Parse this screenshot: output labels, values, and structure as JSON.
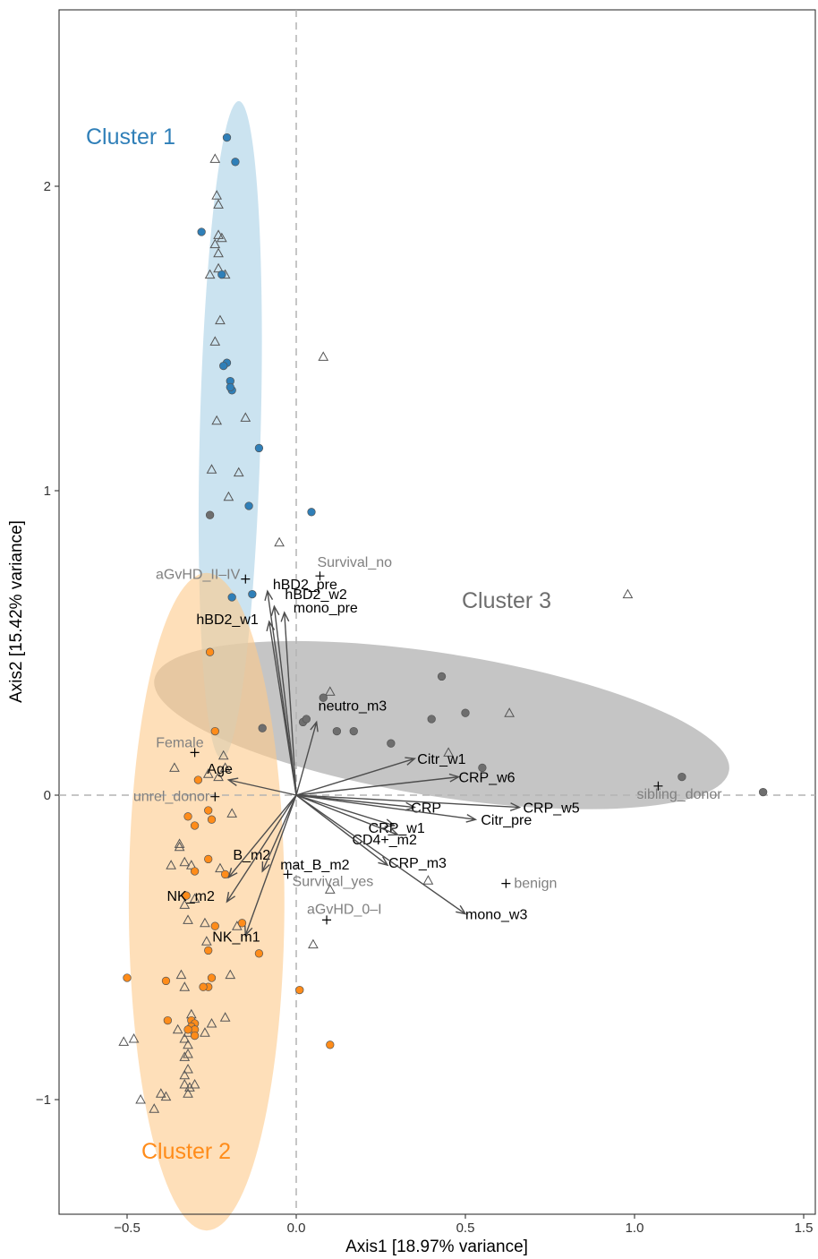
{
  "chart_data": {
    "type": "scatter",
    "title": "",
    "xlabel": "Axis1 [18.97% variance]",
    "ylabel": "Axis2 [15.42% variance]",
    "xlim": [
      -0.7,
      1.53
    ],
    "ylim": [
      -1.37,
      2.58
    ],
    "xticks": [
      -0.5,
      0.0,
      0.5,
      1.0,
      1.5
    ],
    "xtick_labels": [
      "−0.5",
      "0.0",
      "0.5",
      "1.0",
      "1.5"
    ],
    "yticks": [
      -1,
      0,
      1,
      2
    ],
    "ytick_labels": [
      "−1",
      "0",
      "1",
      "2"
    ],
    "grid": false,
    "reference_lines": {
      "x": 0,
      "y": 0,
      "style": "dashed"
    },
    "colors": {
      "cluster1": "#2f7fb8",
      "cluster2": "#ff8c1a",
      "cluster3": "#6e6e6e",
      "ellipse1": "#a9d0e6",
      "ellipse2": "#fdc98a",
      "ellipse3": "#a9a9a9",
      "triangle": "#555555",
      "arrow": "#4d4d4d",
      "supplementary": "#808080"
    },
    "clusters": [
      {
        "name": "Cluster 1",
        "color": "#2f7fb8",
        "ellipse": {
          "cx": -0.195,
          "cy": 1.2,
          "rx": 0.09,
          "ry": 1.08,
          "angle_deg": 1.5
        },
        "points": [
          [
            -0.205,
            2.16
          ],
          [
            -0.18,
            2.08
          ],
          [
            -0.28,
            1.85
          ],
          [
            -0.22,
            1.71
          ],
          [
            -0.205,
            1.42
          ],
          [
            -0.215,
            1.41
          ],
          [
            -0.195,
            1.36
          ],
          [
            -0.19,
            1.33
          ],
          [
            -0.195,
            1.34
          ],
          [
            -0.11,
            1.14
          ],
          [
            -0.14,
            0.95
          ],
          [
            0.045,
            0.93
          ],
          [
            -0.13,
            0.66
          ],
          [
            -0.19,
            0.65
          ]
        ]
      },
      {
        "name": "Cluster 2",
        "color": "#ff8c1a",
        "ellipse": {
          "cx": -0.265,
          "cy": -0.35,
          "rx": 0.23,
          "ry": 1.08,
          "angle_deg": 0
        },
        "points": [
          [
            -0.255,
            0.47
          ],
          [
            -0.24,
            0.21
          ],
          [
            -0.29,
            0.05
          ],
          [
            -0.32,
            -0.07
          ],
          [
            -0.3,
            -0.1
          ],
          [
            -0.26,
            -0.05
          ],
          [
            -0.25,
            -0.08
          ],
          [
            -0.26,
            -0.21
          ],
          [
            -0.21,
            -0.26
          ],
          [
            -0.3,
            -0.25
          ],
          [
            -0.325,
            -0.33
          ],
          [
            -0.16,
            -0.42
          ],
          [
            -0.24,
            -0.43
          ],
          [
            -0.26,
            -0.51
          ],
          [
            -0.11,
            -0.52
          ],
          [
            -0.5,
            -0.6
          ],
          [
            -0.385,
            -0.61
          ],
          [
            -0.25,
            -0.6
          ],
          [
            -0.26,
            -0.63
          ],
          [
            -0.275,
            -0.63
          ],
          [
            0.01,
            -0.64
          ],
          [
            -0.38,
            -0.74
          ],
          [
            -0.31,
            -0.74
          ],
          [
            -0.3,
            -0.75
          ],
          [
            -0.31,
            -0.76
          ],
          [
            -0.3,
            -0.77
          ],
          [
            -0.32,
            -0.77
          ],
          [
            -0.3,
            -0.79
          ],
          [
            0.1,
            -0.82
          ]
        ]
      },
      {
        "name": "Cluster 3",
        "color": "#6e6e6e",
        "ellipse": {
          "cx": 0.43,
          "cy": 0.23,
          "rx": 0.86,
          "ry": 0.235,
          "angle_deg": 9
        },
        "points": [
          [
            -0.255,
            0.92
          ],
          [
            -0.1,
            0.22
          ],
          [
            0.08,
            0.32
          ],
          [
            0.02,
            0.24
          ],
          [
            0.03,
            0.25
          ],
          [
            0.12,
            0.21
          ],
          [
            0.17,
            0.21
          ],
          [
            0.28,
            0.17
          ],
          [
            0.43,
            0.39
          ],
          [
            0.4,
            0.25
          ],
          [
            0.5,
            0.27
          ],
          [
            0.55,
            0.09
          ],
          [
            1.14,
            0.06
          ],
          [
            1.38,
            0.01
          ]
        ]
      }
    ],
    "unassigned_triangles": [
      [
        -0.24,
        2.09
      ],
      [
        -0.235,
        1.97
      ],
      [
        -0.23,
        1.94
      ],
      [
        -0.23,
        1.84
      ],
      [
        -0.22,
        1.83
      ],
      [
        -0.24,
        1.81
      ],
      [
        -0.23,
        1.78
      ],
      [
        -0.23,
        1.73
      ],
      [
        -0.21,
        1.71
      ],
      [
        -0.255,
        1.71
      ],
      [
        -0.225,
        1.56
      ],
      [
        -0.24,
        1.49
      ],
      [
        0.08,
        1.44
      ],
      [
        -0.235,
        1.23
      ],
      [
        -0.15,
        1.24
      ],
      [
        -0.25,
        1.07
      ],
      [
        -0.17,
        1.06
      ],
      [
        -0.2,
        0.98
      ],
      [
        -0.05,
        0.83
      ],
      [
        0.1,
        0.34
      ],
      [
        0.63,
        0.27
      ],
      [
        0.98,
        0.66
      ],
      [
        0.45,
        0.14
      ],
      [
        -0.21,
        0.09
      ],
      [
        -0.215,
        0.13
      ],
      [
        -0.36,
        0.09
      ],
      [
        -0.26,
        0.07
      ],
      [
        -0.23,
        0.06
      ],
      [
        -0.19,
        -0.06
      ],
      [
        -0.345,
        -0.16
      ],
      [
        -0.345,
        -0.17
      ],
      [
        -0.33,
        -0.22
      ],
      [
        -0.37,
        -0.23
      ],
      [
        -0.31,
        -0.23
      ],
      [
        -0.225,
        -0.24
      ],
      [
        -0.3,
        -0.34
      ],
      [
        -0.33,
        -0.36
      ],
      [
        -0.32,
        -0.41
      ],
      [
        -0.27,
        -0.42
      ],
      [
        -0.175,
        -0.43
      ],
      [
        -0.265,
        -0.48
      ],
      [
        0.1,
        -0.31
      ],
      [
        0.39,
        -0.28
      ],
      [
        0.05,
        -0.49
      ],
      [
        -0.195,
        -0.59
      ],
      [
        -0.34,
        -0.59
      ],
      [
        -0.33,
        -0.63
      ],
      [
        -0.31,
        -0.72
      ],
      [
        -0.21,
        -0.73
      ],
      [
        -0.25,
        -0.75
      ],
      [
        -0.35,
        -0.77
      ],
      [
        -0.48,
        -0.8
      ],
      [
        -0.32,
        -0.78
      ],
      [
        -0.27,
        -0.78
      ],
      [
        -0.33,
        -0.8
      ],
      [
        -0.51,
        -0.81
      ],
      [
        -0.32,
        -0.82
      ],
      [
        -0.32,
        -0.85
      ],
      [
        -0.33,
        -0.86
      ],
      [
        -0.32,
        -0.9
      ],
      [
        -0.33,
        -0.92
      ],
      [
        -0.3,
        -0.95
      ],
      [
        -0.33,
        -0.95
      ],
      [
        -0.315,
        -0.96
      ],
      [
        -0.32,
        -0.98
      ],
      [
        -0.4,
        -0.98
      ],
      [
        -0.385,
        -0.99
      ],
      [
        -0.46,
        -1.0
      ],
      [
        -0.42,
        -1.03
      ]
    ],
    "loadings": [
      {
        "label": "hBD2_pre",
        "x": -0.085,
        "y": 0.67
      },
      {
        "label": "hBD2_w2",
        "x": -0.065,
        "y": 0.62
      },
      {
        "label": "mono_pre",
        "x": -0.035,
        "y": 0.6
      },
      {
        "label": "hBD2_w1",
        "x": -0.08,
        "y": 0.57
      },
      {
        "label": "neutro_m3",
        "x": 0.06,
        "y": 0.24
      },
      {
        "label": "Citr_w1",
        "x": 0.35,
        "y": 0.12
      },
      {
        "label": "CRP_w6",
        "x": 0.48,
        "y": 0.06
      },
      {
        "label": "CRP",
        "x": 0.35,
        "y": -0.04
      },
      {
        "label": "CRP_w5",
        "x": 0.66,
        "y": -0.04
      },
      {
        "label": "Citr_pre",
        "x": 0.53,
        "y": -0.08
      },
      {
        "label": "CRP_w1",
        "x": 0.29,
        "y": -0.1
      },
      {
        "label": "CD4+_m2",
        "x": 0.3,
        "y": -0.13
      },
      {
        "label": "CRP_m3",
        "x": 0.27,
        "y": -0.23
      },
      {
        "label": "mono_w3",
        "x": 0.5,
        "y": -0.39
      },
      {
        "label": "Age",
        "x": -0.2,
        "y": 0.05
      },
      {
        "label": "B_m2",
        "x": -0.2,
        "y": -0.27
      },
      {
        "label": "mat_B_m2",
        "x": -0.1,
        "y": -0.25
      },
      {
        "label": "NK_m2",
        "x": -0.205,
        "y": -0.35
      },
      {
        "label": "NK_m1",
        "x": -0.15,
        "y": -0.46
      }
    ],
    "supplementary": [
      {
        "label": "Survival_no",
        "x": 0.07,
        "y": 0.72
      },
      {
        "label": "aGvHD_II–IV",
        "x": -0.15,
        "y": 0.71
      },
      {
        "label": "Female",
        "x": -0.3,
        "y": 0.14
      },
      {
        "label": "unrel_donor",
        "x": -0.24,
        "y": -0.005
      },
      {
        "label": "sibling_donor",
        "x": 1.07,
        "y": 0.03
      },
      {
        "label": "Survival_yes",
        "x": -0.025,
        "y": -0.26
      },
      {
        "label": "benign",
        "x": 0.62,
        "y": -0.29
      },
      {
        "label": "aGvHD_0–I",
        "x": 0.09,
        "y": -0.41
      }
    ]
  }
}
